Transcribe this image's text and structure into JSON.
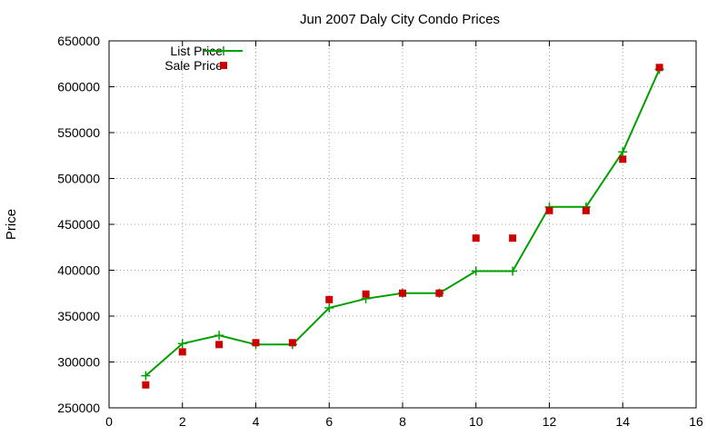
{
  "chart_data": {
    "type": "line",
    "title": "Jun 2007 Daly City Condo Prices",
    "xlabel": "",
    "ylabel": "Price",
    "xlim": [
      0,
      16
    ],
    "ylim": [
      250000,
      650000
    ],
    "xticks": [
      0,
      2,
      4,
      6,
      8,
      10,
      12,
      14,
      16
    ],
    "yticks": [
      250000,
      300000,
      350000,
      400000,
      450000,
      500000,
      550000,
      600000,
      650000
    ],
    "grid": true,
    "legend_position": "top-left",
    "series": [
      {
        "name": "List Price",
        "style": "line+cross",
        "color": "#00a000",
        "x": [
          1,
          2,
          3,
          4,
          5,
          6,
          7,
          8,
          9,
          10,
          11,
          12,
          13,
          14,
          15
        ],
        "y": [
          285000,
          320000,
          329000,
          319000,
          319000,
          359000,
          369000,
          375000,
          375000,
          399000,
          399000,
          469000,
          469000,
          529000,
          619000
        ]
      },
      {
        "name": "Sale Price",
        "style": "square-points",
        "color": "#cc0000",
        "x": [
          1,
          2,
          3,
          4,
          5,
          6,
          7,
          8,
          9,
          10,
          11,
          12,
          13,
          14,
          15
        ],
        "y": [
          275000,
          311000,
          319000,
          321000,
          321000,
          368000,
          374000,
          375000,
          375000,
          435000,
          435000,
          465000,
          465000,
          521000,
          621000
        ]
      }
    ]
  }
}
